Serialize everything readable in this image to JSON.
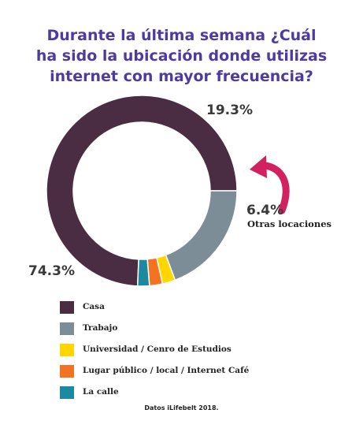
{
  "title": {
    "line1": "Durante la última semana ¿Cuál",
    "line2": "ha sido la ubicación donde utilizas",
    "line3": "internet con mayor frecuencia?"
  },
  "chart_data": {
    "type": "pie",
    "style": "donut",
    "categories": [
      "Casa",
      "Trabajo",
      "Universidad / Cenro de Estudios",
      "Lugar público / local / Internet Café",
      "La calle"
    ],
    "values": [
      74.3,
      19.3,
      2.2,
      2.2,
      2.0
    ],
    "colors": [
      "#4a2d43",
      "#7c8d98",
      "#ffd600",
      "#f47322",
      "#1b8aa0"
    ],
    "data_labels": {
      "casa": "74.3%",
      "trabajo": "19.3%",
      "others": "6.4%"
    },
    "others_caption": "Otras locaciones",
    "legend_position": "bottom-left",
    "annotation_arrow_color": "#d1215e"
  },
  "source": "Datos iLifebelt 2018."
}
